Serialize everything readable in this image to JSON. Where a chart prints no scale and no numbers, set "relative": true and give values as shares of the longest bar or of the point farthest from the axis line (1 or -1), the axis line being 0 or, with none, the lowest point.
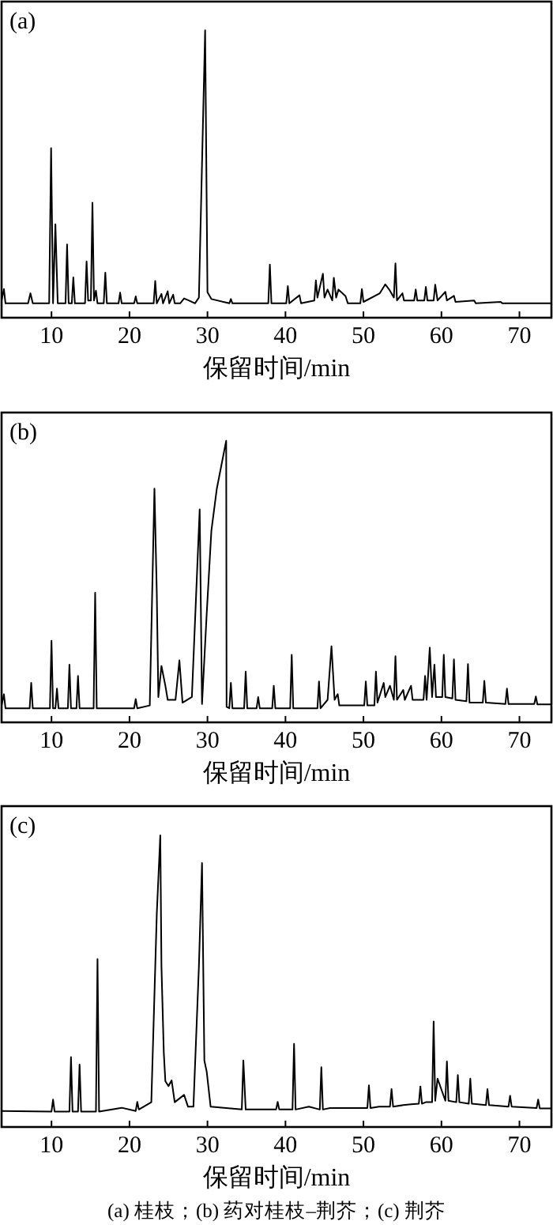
{
  "chart_data": [
    {
      "type": "line",
      "relative": true,
      "xlim": [
        3.6,
        74.1
      ],
      "xticks": [
        10,
        20,
        30,
        40,
        50,
        60,
        70
      ],
      "xlabel": "保留时间/min",
      "annotations": [
        "(a)"
      ],
      "x": [
        3.6,
        3.9,
        4.1,
        7.0,
        7.3,
        7.6,
        9.7,
        9.95,
        10.2,
        10.5,
        10.8,
        11.8,
        12.0,
        12.2,
        12.6,
        12.8,
        13.0,
        14.3,
        14.5,
        14.7,
        15.05,
        15.25,
        15.45,
        15.7,
        15.9,
        16.7,
        16.9,
        17.1,
        18.6,
        18.8,
        19.0,
        20.6,
        20.8,
        21.0,
        23.1,
        23.3,
        23.5,
        24.1,
        24.3,
        24.9,
        25.1,
        25.6,
        25.8,
        26.5,
        27.0,
        27.6,
        28.4,
        28.9,
        29.7,
        30.0,
        30.5,
        32.8,
        33.0,
        33.2,
        37.8,
        38.0,
        38.2,
        40.1,
        40.3,
        40.5,
        41.8,
        42.0,
        43.7,
        43.9,
        44.1,
        44.8,
        45.0,
        45.4,
        46.0,
        46.2,
        46.5,
        46.8,
        47.7,
        48.0,
        49.6,
        49.8,
        50.0,
        52.1,
        52.8,
        53.3,
        53.9,
        54.1,
        54.3,
        55.0,
        55.2,
        56.5,
        56.7,
        56.9,
        57.8,
        58.0,
        58.2,
        59.0,
        59.2,
        59.5,
        60.5,
        60.7,
        61.6,
        61.8,
        64.2,
        64.4,
        67.6,
        67.8,
        74.0
      ],
      "series": [
        {
          "color": "#000000",
          "values": [
            0.06,
            0.1,
            0.05,
            0.05,
            0.085,
            0.05,
            0.05,
            0.59,
            0.05,
            0.325,
            0.05,
            0.05,
            0.255,
            0.05,
            0.05,
            0.14,
            0.05,
            0.05,
            0.196,
            0.06,
            0.06,
            0.4,
            0.06,
            0.094,
            0.05,
            0.05,
            0.157,
            0.05,
            0.05,
            0.087,
            0.05,
            0.05,
            0.074,
            0.05,
            0.05,
            0.128,
            0.05,
            0.083,
            0.05,
            0.092,
            0.05,
            0.08,
            0.05,
            0.05,
            0.067,
            0.06,
            0.05,
            0.07,
            1.0,
            0.089,
            0.065,
            0.05,
            0.065,
            0.05,
            0.05,
            0.185,
            0.05,
            0.05,
            0.11,
            0.05,
            0.078,
            0.05,
            0.06,
            0.13,
            0.07,
            0.153,
            0.07,
            0.098,
            0.06,
            0.139,
            0.07,
            0.098,
            0.075,
            0.05,
            0.05,
            0.1,
            0.055,
            0.085,
            0.116,
            0.098,
            0.07,
            0.189,
            0.06,
            0.085,
            0.06,
            0.06,
            0.098,
            0.06,
            0.06,
            0.107,
            0.06,
            0.06,
            0.115,
            0.06,
            0.09,
            0.06,
            0.076,
            0.055,
            0.06,
            0.05,
            0.055,
            0.05,
            0.05
          ]
        }
      ]
    },
    {
      "type": "line",
      "relative": true,
      "xlim": [
        3.6,
        74.1
      ],
      "xticks": [
        10,
        20,
        30,
        40,
        50,
        60,
        70
      ],
      "xlabel": "保留时间/min",
      "annotations": [
        "(b)"
      ],
      "x": [
        3.6,
        3.9,
        4.1,
        7.2,
        7.4,
        7.6,
        9.8,
        10.0,
        10.2,
        10.5,
        10.7,
        10.9,
        12.1,
        12.3,
        12.5,
        13.2,
        13.4,
        13.6,
        15.4,
        15.6,
        15.8,
        20.6,
        20.8,
        21.0,
        22.6,
        23.2,
        23.5,
        23.7,
        24.1,
        24.6,
        24.9,
        25.9,
        26.4,
        26.8,
        28.0,
        29.0,
        29.3,
        29.9,
        30.5,
        31.2,
        32.4,
        32.45,
        32.8,
        33.0,
        33.2,
        34.7,
        34.9,
        35.1,
        36.3,
        36.5,
        36.7,
        38.3,
        38.5,
        38.7,
        40.6,
        40.8,
        41.0,
        44.1,
        44.3,
        44.5,
        45.4,
        45.9,
        46.3,
        46.7,
        46.9,
        50.1,
        50.3,
        50.5,
        51.4,
        51.6,
        51.8,
        52.6,
        52.8,
        53.4,
        53.9,
        54.1,
        54.3,
        55.1,
        55.3,
        56.1,
        56.3,
        57.7,
        57.9,
        58.1,
        58.5,
        58.8,
        59.1,
        59.3,
        60.1,
        60.3,
        60.5,
        61.4,
        61.6,
        61.8,
        63.2,
        63.4,
        63.6,
        65.3,
        65.5,
        65.7,
        68.2,
        68.4,
        68.6,
        71.9,
        72.1,
        72.3,
        74.0
      ],
      "series": [
        {
          "color": "#000000",
          "values": [
            0.06,
            0.1,
            0.05,
            0.05,
            0.14,
            0.05,
            0.05,
            0.29,
            0.05,
            0.05,
            0.12,
            0.05,
            0.05,
            0.205,
            0.05,
            0.05,
            0.165,
            0.05,
            0.05,
            0.46,
            0.05,
            0.05,
            0.083,
            0.05,
            0.06,
            0.83,
            0.46,
            0.09,
            0.2,
            0.13,
            0.08,
            0.08,
            0.22,
            0.07,
            0.09,
            0.756,
            0.065,
            0.385,
            0.68,
            0.83,
            1.0,
            0.055,
            0.05,
            0.14,
            0.05,
            0.05,
            0.18,
            0.05,
            0.05,
            0.09,
            0.05,
            0.05,
            0.13,
            0.05,
            0.05,
            0.24,
            0.05,
            0.05,
            0.145,
            0.05,
            0.08,
            0.27,
            0.08,
            0.1,
            0.06,
            0.06,
            0.145,
            0.06,
            0.06,
            0.18,
            0.07,
            0.14,
            0.09,
            0.13,
            0.08,
            0.235,
            0.08,
            0.115,
            0.08,
            0.13,
            0.08,
            0.08,
            0.165,
            0.08,
            0.265,
            0.09,
            0.205,
            0.09,
            0.09,
            0.24,
            0.09,
            0.085,
            0.224,
            0.08,
            0.075,
            0.207,
            0.07,
            0.07,
            0.147,
            0.07,
            0.065,
            0.12,
            0.065,
            0.065,
            0.092,
            0.064,
            0.064
          ]
        }
      ]
    },
    {
      "type": "line",
      "relative": true,
      "xlim": [
        3.6,
        74.1
      ],
      "xticks": [
        10,
        20,
        30,
        40,
        50,
        60,
        70
      ],
      "xlabel": "保留时间/min",
      "annotations": [
        "(c)",
        "(a) 桂枝；(b) 药对桂枝–荆芥；(c) 荆芥"
      ],
      "x": [
        3.6,
        10.0,
        10.2,
        10.4,
        12.3,
        12.5,
        12.7,
        13.4,
        13.6,
        13.8,
        15.7,
        15.9,
        16.1,
        19.0,
        20.8,
        21.0,
        21.2,
        22.8,
        23.5,
        23.95,
        24.1,
        24.4,
        24.6,
        25.0,
        25.4,
        25.8,
        27.0,
        27.5,
        28.2,
        28.9,
        29.3,
        29.6,
        29.9,
        30.4,
        34.4,
        34.6,
        34.9,
        38.8,
        39.0,
        39.2,
        40.9,
        41.1,
        41.3,
        43.0,
        44.4,
        44.6,
        44.8,
        45.7,
        47.5,
        50.5,
        50.7,
        50.9,
        52.0,
        53.4,
        53.6,
        53.8,
        55.1,
        56.1,
        57.1,
        57.3,
        57.5,
        58.0,
        58.8,
        59.0,
        59.2,
        59.5,
        60.5,
        60.7,
        60.9,
        61.9,
        62.1,
        62.3,
        63.5,
        63.7,
        63.9,
        65.7,
        65.9,
        66.1,
        68.6,
        68.8,
        69.0,
        72.2,
        72.4,
        72.6,
        74.0
      ],
      "series": [
        {
          "color": "#000000",
          "values": [
            0.055,
            0.053,
            0.094,
            0.053,
            0.053,
            0.24,
            0.053,
            0.053,
            0.214,
            0.053,
            0.053,
            0.576,
            0.053,
            0.066,
            0.055,
            0.086,
            0.06,
            0.085,
            0.73,
            1.0,
            0.55,
            0.255,
            0.157,
            0.14,
            0.16,
            0.085,
            0.11,
            0.07,
            0.07,
            0.55,
            0.905,
            0.228,
            0.19,
            0.07,
            0.06,
            0.228,
            0.06,
            0.06,
            0.086,
            0.06,
            0.06,
            0.285,
            0.06,
            0.07,
            0.06,
            0.205,
            0.06,
            0.065,
            0.065,
            0.065,
            0.143,
            0.065,
            0.07,
            0.07,
            0.13,
            0.07,
            0.075,
            0.078,
            0.08,
            0.139,
            0.08,
            0.085,
            0.085,
            0.362,
            0.09,
            0.166,
            0.09,
            0.225,
            0.09,
            0.085,
            0.178,
            0.085,
            0.08,
            0.166,
            0.08,
            0.075,
            0.13,
            0.075,
            0.07,
            0.107,
            0.07,
            0.065,
            0.094,
            0.064,
            0.064
          ]
        }
      ]
    }
  ]
}
